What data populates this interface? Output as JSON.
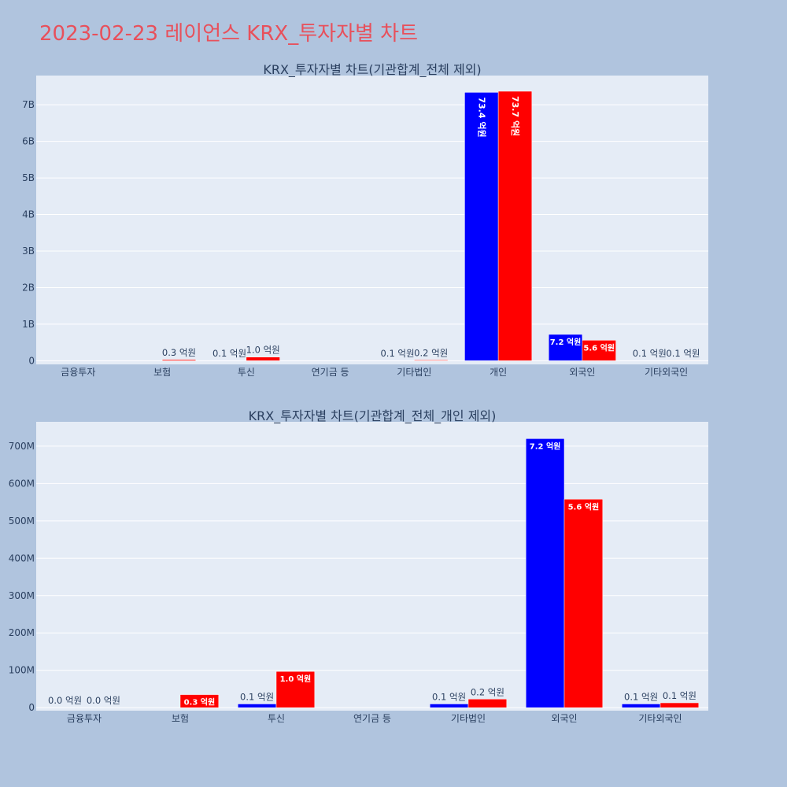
{
  "page": {
    "title": "2023-02-23 레이언스 KRX_투자자별 차트"
  },
  "colors": {
    "background": "#b0c4de",
    "plot_background": "#e5ecf6",
    "title": "#e8505b",
    "series_1": "#0000ff",
    "series_2": "#ff0000",
    "text": "#2a3f5f"
  },
  "chart_data": [
    {
      "type": "bar",
      "title": "KRX_투자자별 차트(기관합계_전체 제외)",
      "categories": [
        "금융투자",
        "보험",
        "투신",
        "연기금 등",
        "기타법인",
        "개인",
        "외국인",
        "기타외국인"
      ],
      "series": [
        {
          "color": "#0000ff",
          "values": [
            0,
            0,
            10000000,
            0,
            10000000,
            7340000000,
            720000000,
            10000000
          ],
          "labels": [
            "",
            "",
            "0.1 억원",
            "",
            "0.1 억원",
            "73.4 억원",
            "7.2 억원",
            "0.1 억원"
          ]
        },
        {
          "color": "#ff0000",
          "values": [
            0,
            30000000,
            100000000,
            0,
            20000000,
            7370000000,
            560000000,
            10000000
          ],
          "labels": [
            "",
            "0.3 억원",
            "1.0 억원",
            "",
            "0.2 억원",
            "73.7 억원",
            "5.6 억원",
            "0.1 억원"
          ]
        }
      ],
      "ylim": [
        -100000000,
        7800000000
      ],
      "yticks": [
        0,
        1000000000,
        2000000000,
        3000000000,
        4000000000,
        5000000000,
        6000000000,
        7000000000
      ],
      "ytick_labels": [
        "0",
        "1B",
        "2B",
        "3B",
        "4B",
        "5B",
        "6B",
        "7B"
      ],
      "grid": true,
      "legend": "none"
    },
    {
      "type": "bar",
      "title": "KRX_투자자별 차트(기관합계_전체_개인 제외)",
      "categories": [
        "금융투자",
        "보험",
        "투신",
        "연기금 등",
        "기타법인",
        "외국인",
        "기타외국인"
      ],
      "series": [
        {
          "color": "#0000ff",
          "values": [
            0,
            0,
            10000000,
            0,
            10000000,
            720000000,
            10000000
          ],
          "labels": [
            "0.0 억원",
            "",
            "0.1 억원",
            "",
            "0.1 억원",
            "7.2 억원",
            "0.1 억원"
          ]
        },
        {
          "color": "#ff0000",
          "values": [
            0,
            35000000,
            97000000,
            0,
            23000000,
            558000000,
            13000000
          ],
          "labels": [
            "0.0 억원",
            "0.3 억원",
            "1.0 억원",
            "",
            "0.2 억원",
            "5.6 억원",
            "0.1 억원"
          ]
        }
      ],
      "ylim": [
        -8000000,
        765000000
      ],
      "yticks": [
        0,
        100000000,
        200000000,
        300000000,
        400000000,
        500000000,
        600000000,
        700000000
      ],
      "ytick_labels": [
        "0",
        "100M",
        "200M",
        "300M",
        "400M",
        "500M",
        "600M",
        "700M"
      ],
      "grid": true,
      "legend": "none"
    }
  ]
}
